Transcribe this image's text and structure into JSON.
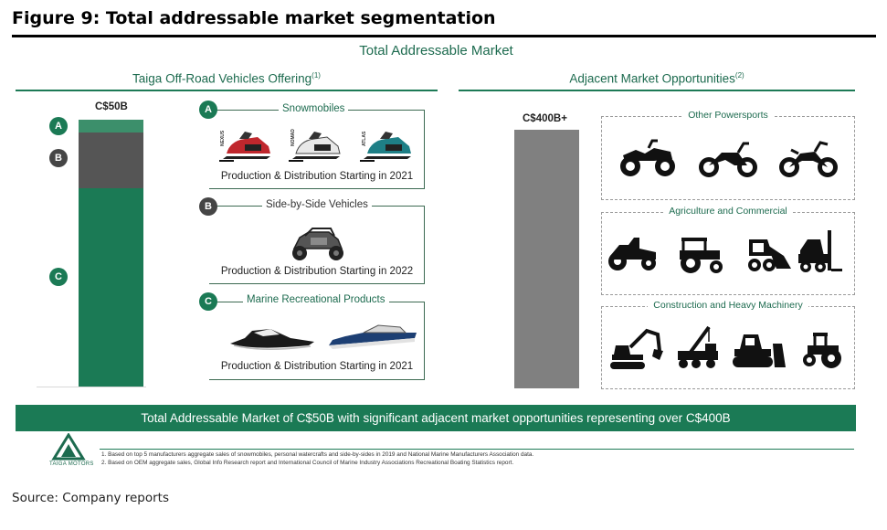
{
  "figure": {
    "title": "Figure 9: Total addressable market segmentation"
  },
  "tam_title": "Total Addressable Market",
  "left_section": {
    "title": "Taiga Off-Road Vehicles Offering",
    "footnote_marker": "(1)",
    "bar_value_label": "C$50B",
    "bar_segments": [
      {
        "id": "A",
        "color": "#3c8f6b"
      },
      {
        "id": "B",
        "color": "#555555"
      },
      {
        "id": "C",
        "color": "#1b7a55"
      }
    ],
    "segments": [
      {
        "badge": "A",
        "title": "Snowmobiles",
        "footer": "Production & Distribution Starting in 2021",
        "brands": [
          "NEXUS",
          "NOMAD",
          "ATLAS"
        ]
      },
      {
        "badge": "B",
        "title": "Side-by-Side Vehicles",
        "footer": "Production & Distribution Starting in 2022"
      },
      {
        "badge": "C",
        "title": "Marine Recreational Products",
        "footer": "Production & Distribution Starting in 2021"
      }
    ]
  },
  "right_section": {
    "title": "Adjacent Market Opportunities",
    "footnote_marker": "(2)",
    "bar_value_label": "C$400B+",
    "bar_color": "#808080",
    "groups": [
      {
        "title": "Other Powersports",
        "icons": [
          "atv-icon",
          "motorcycle-icon",
          "dirt-bike-icon"
        ]
      },
      {
        "title": "Agriculture and Commercial",
        "icons": [
          "lawn-tractor-icon",
          "tractor-icon",
          "skid-steer-icon",
          "forklift-icon"
        ]
      },
      {
        "title": "Construction and Heavy Machinery",
        "icons": [
          "excavator-icon",
          "crane-truck-icon",
          "bulldozer-icon",
          "road-roller-icon"
        ]
      }
    ]
  },
  "banner": "Total Addressable Market of C$50B with significant adjacent market opportunities representing over C$400B",
  "logo_text": "TAIGA MOTORS",
  "footnotes": [
    "1.   Based on top 5 manufacturers aggregate sales of snowmobiles, personal watercrafts and side-by-sides in 2019 and National Marine Manufacturers Association data.",
    "2.   Based on OEM aggregate sales, Global Info Research report and International Council of Marine Industry Associations Recreational Boating Statistics report."
  ],
  "source": "Source: Company reports",
  "colors": {
    "accent": "#1b7a55",
    "dark_segment": "#555555",
    "adjacent_bar": "#808080"
  }
}
